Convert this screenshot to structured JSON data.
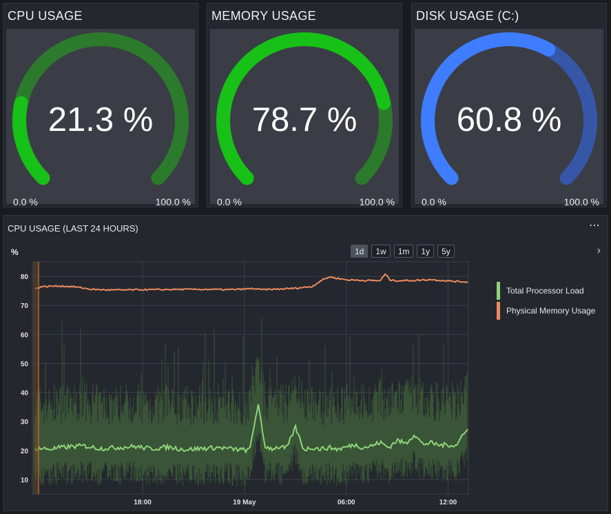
{
  "gauges": [
    {
      "title": "CPU USAGE",
      "value_text": "21.3 %",
      "value": 21.3,
      "min_label": "0.0 %",
      "max_label": "100.0 %",
      "fg": "#17c117",
      "bg": "#2c7a2c"
    },
    {
      "title": "MEMORY USAGE",
      "value_text": "78.7 %",
      "value": 78.7,
      "min_label": "0.0 %",
      "max_label": "100.0 %",
      "fg": "#17c117",
      "bg": "#2c7a2c"
    },
    {
      "title": "DISK USAGE (C:)",
      "value_text": "60.8 %",
      "value": 60.8,
      "min_label": "0.0 %",
      "max_label": "100.0 %",
      "fg": "#3e7dff",
      "bg": "#3656a8"
    }
  ],
  "chart_panel": {
    "title": "CPU USAGE (LAST 24 HOURS)",
    "more_icon": "ellipsis-icon",
    "unit_label": "%",
    "range_buttons": [
      "1d",
      "1w",
      "1m",
      "1y",
      "5y"
    ],
    "active_range": "1d",
    "next_icon": "chevron-right-icon"
  },
  "chart_data": {
    "type": "line",
    "xlabel": "",
    "ylabel": "%",
    "ylim": [
      5,
      85
    ],
    "yticks": [
      10,
      20,
      30,
      40,
      50,
      60,
      70,
      80
    ],
    "xticks": [
      {
        "label": "18:00",
        "hour": 3
      },
      {
        "label": "19 May",
        "hour": 9
      },
      {
        "label": "06:00",
        "hour": 15
      },
      {
        "label": "12:00",
        "hour": 21
      }
    ],
    "xlim_hours": [
      -3.5,
      22.2
    ],
    "grid": true,
    "legend_position": "right",
    "series": [
      {
        "name": "Total Processor Load",
        "color": "#8fd47a",
        "band_color": "#3c5a37",
        "x": [
          -3.4,
          -2.5,
          -1.5,
          -0.5,
          0.5,
          1.5,
          2.5,
          3.5,
          4.5,
          5.5,
          6.5,
          7.5,
          8.5,
          9.3,
          9.8,
          10.2,
          10.6,
          11.0,
          11.5,
          12.0,
          12.5,
          13.0,
          13.5,
          14.0,
          14.5,
          15.0,
          15.5,
          16.0,
          16.5,
          17.0,
          17.5,
          18.0,
          18.5,
          19.0,
          19.5,
          20.0,
          20.5,
          21.0,
          21.5,
          22.0
        ],
        "y": [
          20.8,
          20.5,
          21.2,
          21.6,
          20.7,
          21.0,
          21.4,
          20.6,
          21.2,
          20.3,
          20.7,
          21.0,
          20.4,
          20.0,
          36.0,
          21.5,
          20.6,
          21.2,
          20.8,
          28.0,
          20.3,
          21.0,
          20.5,
          21.0,
          20.4,
          21.2,
          22.0,
          21.0,
          21.6,
          22.8,
          21.0,
          23.5,
          22.4,
          25.5,
          22.2,
          22.6,
          21.8,
          22.0,
          21.6,
          27.0
        ]
      },
      {
        "name": "Physical Memory Usage",
        "color": "#ee8a5d",
        "x": [
          -3.4,
          -3.0,
          -2.0,
          -1.0,
          0.0,
          1.0,
          2.0,
          3.0,
          4.0,
          5.0,
          6.0,
          7.0,
          8.0,
          9.0,
          9.5,
          10.0,
          11.0,
          12.0,
          12.5,
          13.0,
          13.5,
          14.0,
          15.0,
          16.0,
          17.0,
          17.3,
          17.6,
          18.0,
          19.0,
          20.0,
          21.0,
          22.0
        ],
        "y": [
          75.5,
          76.4,
          76.7,
          76.4,
          75.5,
          75.3,
          75.3,
          75.4,
          75.4,
          75.5,
          75.5,
          75.5,
          75.4,
          75.6,
          75.8,
          75.4,
          75.6,
          75.9,
          76.2,
          76.5,
          78.5,
          79.8,
          78.8,
          78.6,
          78.5,
          80.8,
          78.7,
          78.5,
          78.6,
          78.9,
          78.4,
          78.1
        ]
      }
    ]
  }
}
